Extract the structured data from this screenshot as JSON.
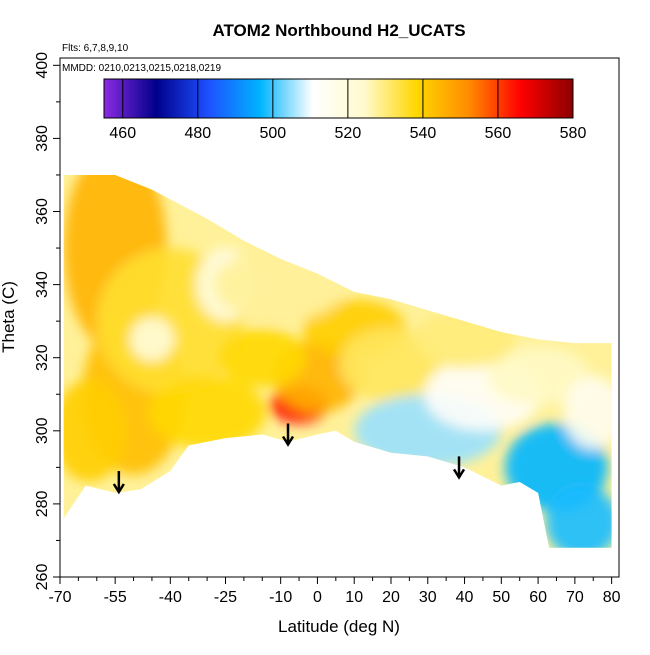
{
  "chart_data": {
    "type": "heatmap",
    "title": "ATOM2 Northbound H2_UCATS",
    "annotations": {
      "flights": "Flts: 6,7,8,9,10",
      "dates": "MMDD: 0210,0213,0215,0218,0219"
    },
    "xlabel": "Latitude (deg N)",
    "ylabel": "Theta (C)",
    "xlim": [
      -70,
      82
    ],
    "ylim": [
      260,
      402
    ],
    "x_ticks": [
      -70,
      -55,
      -40,
      -25,
      -10,
      0,
      10,
      20,
      30,
      40,
      50,
      60,
      70,
      80
    ],
    "x_tick_labels": [
      "-70",
      "-55",
      "-40",
      "-25",
      "-10",
      "0",
      "10",
      "20",
      "30",
      "40",
      "50",
      "60",
      "70",
      "80"
    ],
    "y_ticks": [
      260,
      280,
      300,
      320,
      340,
      360,
      380,
      400
    ],
    "y_tick_labels": [
      "260",
      "280",
      "300",
      "320",
      "340",
      "360",
      "380",
      "400"
    ],
    "colorbar": {
      "range": [
        455,
        580
      ],
      "ticks": [
        460,
        480,
        500,
        520,
        540,
        560,
        580
      ],
      "tick_labels": [
        "460",
        "480",
        "500",
        "520",
        "540",
        "560",
        "580"
      ],
      "colors": [
        "#8a2be2",
        "#00008b",
        "#1e50ff",
        "#00b4ff",
        "#ffffff",
        "#fffacd",
        "#ffd700",
        "#ff8c00",
        "#ff0000",
        "#8b0000"
      ]
    },
    "domain_outline": {
      "top": [
        [
          -69,
          370
        ],
        [
          -55,
          370
        ],
        [
          -45,
          366
        ],
        [
          -30,
          358
        ],
        [
          -20,
          352
        ],
        [
          -10,
          347
        ],
        [
          0,
          343
        ],
        [
          10,
          338
        ],
        [
          20,
          336
        ],
        [
          30,
          333
        ],
        [
          40,
          330
        ],
        [
          50,
          327
        ],
        [
          60,
          325
        ],
        [
          70,
          324
        ],
        [
          80,
          324
        ]
      ],
      "bottom": [
        [
          -69,
          276
        ],
        [
          -63,
          285
        ],
        [
          -55,
          283
        ],
        [
          -48,
          284
        ],
        [
          -40,
          289
        ],
        [
          -35,
          296
        ],
        [
          -25,
          298
        ],
        [
          -15,
          299
        ],
        [
          -8,
          297
        ],
        [
          0,
          299
        ],
        [
          5,
          300
        ],
        [
          10,
          297
        ],
        [
          20,
          294
        ],
        [
          30,
          293
        ],
        [
          40,
          290
        ],
        [
          50,
          285
        ],
        [
          55,
          286
        ],
        [
          60,
          283
        ],
        [
          63,
          268
        ],
        [
          80,
          268
        ]
      ]
    },
    "features": [
      {
        "lat": -55,
        "theta": 350,
        "value": 545,
        "r": [
          14,
          28
        ]
      },
      {
        "lat": -50,
        "theta": 310,
        "value": 543,
        "r": [
          14,
          22
        ]
      },
      {
        "lat": -40,
        "theta": 330,
        "value": 535,
        "r": [
          20,
          20
        ]
      },
      {
        "lat": -62,
        "theta": 300,
        "value": 540,
        "r": [
          10,
          14
        ]
      },
      {
        "lat": -30,
        "theta": 305,
        "value": 538,
        "r": [
          16,
          10
        ]
      },
      {
        "lat": -25,
        "theta": 340,
        "value": 519,
        "r": [
          8,
          10
        ]
      },
      {
        "lat": -45,
        "theta": 325,
        "value": 520,
        "r": [
          6,
          6
        ]
      },
      {
        "lat": -5,
        "theta": 307,
        "value": 565,
        "r": [
          8,
          5
        ]
      },
      {
        "lat": 0,
        "theta": 315,
        "value": 545,
        "r": [
          12,
          10
        ]
      },
      {
        "lat": -15,
        "theta": 320,
        "value": 538,
        "r": [
          12,
          8
        ]
      },
      {
        "lat": 10,
        "theta": 328,
        "value": 540,
        "r": [
          14,
          8
        ]
      },
      {
        "lat": 20,
        "theta": 318,
        "value": 532,
        "r": [
          14,
          10
        ]
      },
      {
        "lat": -10,
        "theta": 340,
        "value": 528,
        "r": [
          18,
          10
        ]
      },
      {
        "lat": 30,
        "theta": 300,
        "value": 505,
        "r": [
          20,
          10
        ]
      },
      {
        "lat": 45,
        "theta": 310,
        "value": 512,
        "r": [
          16,
          10
        ]
      },
      {
        "lat": 65,
        "theta": 290,
        "value": 497,
        "r": [
          14,
          12
        ]
      },
      {
        "lat": 72,
        "theta": 275,
        "value": 498,
        "r": [
          10,
          10
        ]
      },
      {
        "lat": 60,
        "theta": 315,
        "value": 525,
        "r": [
          14,
          8
        ]
      },
      {
        "lat": 40,
        "theta": 325,
        "value": 530,
        "r": [
          14,
          8
        ]
      },
      {
        "lat": 75,
        "theta": 305,
        "value": 515,
        "r": [
          8,
          10
        ]
      }
    ],
    "background_value": 528,
    "arrows": [
      {
        "lat": -54,
        "theta": 289
      },
      {
        "lat": -8,
        "theta": 302
      },
      {
        "lat": 38.5,
        "theta": 293
      }
    ]
  }
}
